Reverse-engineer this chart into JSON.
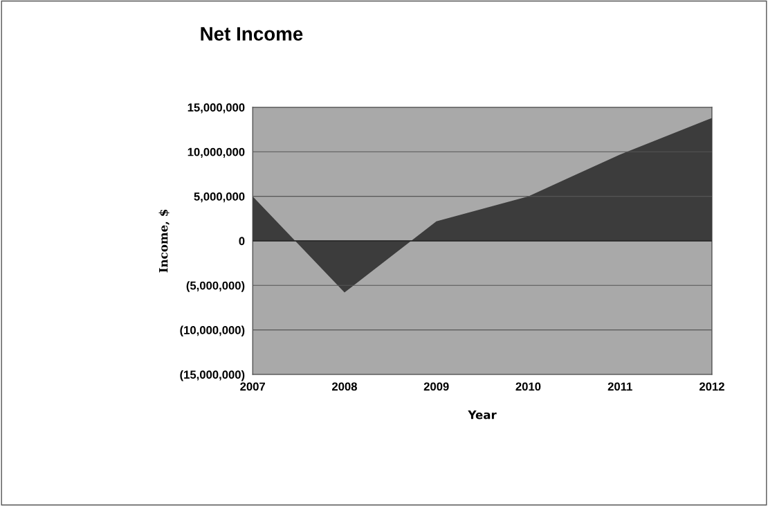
{
  "chart_data": {
    "type": "area",
    "title": "Net Income",
    "xlabel": "Year",
    "ylabel": "Income, $",
    "categories": [
      "2007",
      "2008",
      "2009",
      "2010",
      "2011",
      "2012"
    ],
    "series": [
      {
        "color": "#3c3c3c",
        "values": [
          5000000,
          -5800000,
          2200000,
          5000000,
          9700000,
          13800000
        ]
      }
    ],
    "ylim": [
      -15000000,
      15000000
    ],
    "yticks": [
      {
        "value": -15000000,
        "label": "(15,000,000)"
      },
      {
        "value": -10000000,
        "label": "(10,000,000)"
      },
      {
        "value": -5000000,
        "label": "(5,000,000)"
      },
      0,
      {
        "value": 5000000,
        "label": "5,000,000"
      },
      {
        "value": 10000000,
        "label": "10,000,000"
      },
      {
        "value": 15000000,
        "label": "15,000,000"
      }
    ],
    "grid": "y",
    "legend": false
  }
}
